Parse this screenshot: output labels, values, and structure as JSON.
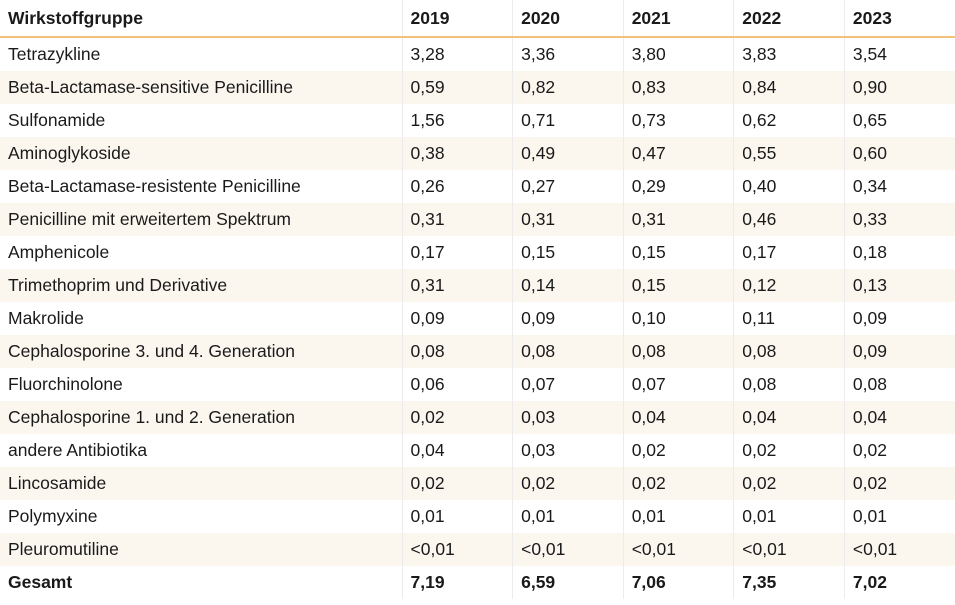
{
  "table": {
    "headers": [
      "Wirkstoffgruppe",
      "2019",
      "2020",
      "2021",
      "2022",
      "2023"
    ],
    "rows": [
      [
        "Tetrazykline",
        "3,28",
        "3,36",
        "3,80",
        "3,83",
        "3,54"
      ],
      [
        "Beta-Lactamase-sensitive Penicilline",
        "0,59",
        "0,82",
        "0,83",
        "0,84",
        "0,90"
      ],
      [
        "Sulfonamide",
        "1,56",
        "0,71",
        "0,73",
        "0,62",
        "0,65"
      ],
      [
        "Aminoglykoside",
        "0,38",
        "0,49",
        "0,47",
        "0,55",
        "0,60"
      ],
      [
        "Beta-Lactamase-resistente Penicilline",
        "0,26",
        "0,27",
        "0,29",
        "0,40",
        "0,34"
      ],
      [
        "Penicilline mit erweitertem Spektrum",
        "0,31",
        "0,31",
        "0,31",
        "0,46",
        "0,33"
      ],
      [
        "Amphenicole",
        "0,17",
        "0,15",
        "0,15",
        "0,17",
        "0,18"
      ],
      [
        "Trimethoprim und Derivative",
        "0,31",
        "0,14",
        "0,15",
        "0,12",
        "0,13"
      ],
      [
        "Makrolide",
        "0,09",
        "0,09",
        "0,10",
        "0,11",
        "0,09"
      ],
      [
        "Cephalosporine 3. und 4. Generation",
        "0,08",
        "0,08",
        "0,08",
        "0,08",
        "0,09"
      ],
      [
        "Fluorchinolone",
        "0,06",
        "0,07",
        "0,07",
        "0,08",
        "0,08"
      ],
      [
        "Cephalosporine 1. und 2. Generation",
        "0,02",
        "0,03",
        "0,04",
        "0,04",
        "0,04"
      ],
      [
        "andere Antibiotika",
        "0,04",
        "0,03",
        "0,02",
        "0,02",
        "0,02"
      ],
      [
        "Lincosamide",
        "0,02",
        "0,02",
        "0,02",
        "0,02",
        "0,02"
      ],
      [
        "Polymyxine",
        "0,01",
        "0,01",
        "0,01",
        "0,01",
        "0,01"
      ],
      [
        "Pleuromutiline",
        "<0,01",
        "<0,01",
        "<0,01",
        "<0,01",
        "<0,01"
      ]
    ],
    "total": [
      "Gesamt",
      "7,19",
      "6,59",
      "7,06",
      "7,35",
      "7,02"
    ]
  }
}
